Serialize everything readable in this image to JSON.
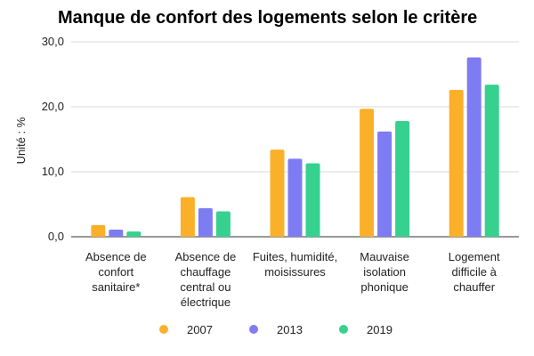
{
  "chart_data": {
    "type": "bar",
    "title": "Manque de confort des logements selon le critère",
    "ylabel": "Unité : %",
    "xlabel": "",
    "ylim": [
      0,
      30
    ],
    "yticks": [
      "0,0",
      "10,0",
      "20,0",
      "30,0"
    ],
    "grid": true,
    "legend_position": "bottom",
    "categories": [
      "Absence de confort sanitaire*",
      "Absence de chauffage central ou électrique",
      "Fuites, humidité, moisissures",
      "Mauvaise isolation phonique",
      "Logement difficile à chauffer"
    ],
    "category_lines": [
      [
        "Absence de",
        "confort",
        "sanitaire*"
      ],
      [
        "Absence de",
        "chauffage",
        "central ou",
        "électrique"
      ],
      [
        "Fuites, humidité,",
        "moisissures"
      ],
      [
        "Mauvaise",
        "isolation",
        "phonique"
      ],
      [
        "Logement",
        "difficile à",
        "chauffer"
      ]
    ],
    "series": [
      {
        "name": "2007",
        "color": "#fbb02a",
        "values": [
          1.8,
          6.1,
          13.4,
          19.7,
          22.6
        ]
      },
      {
        "name": "2013",
        "color": "#7e7cf2",
        "values": [
          1.1,
          4.4,
          12.0,
          16.2,
          27.6
        ]
      },
      {
        "name": "2019",
        "color": "#36d18e",
        "values": [
          0.8,
          3.9,
          11.3,
          17.8,
          23.4
        ]
      }
    ]
  }
}
